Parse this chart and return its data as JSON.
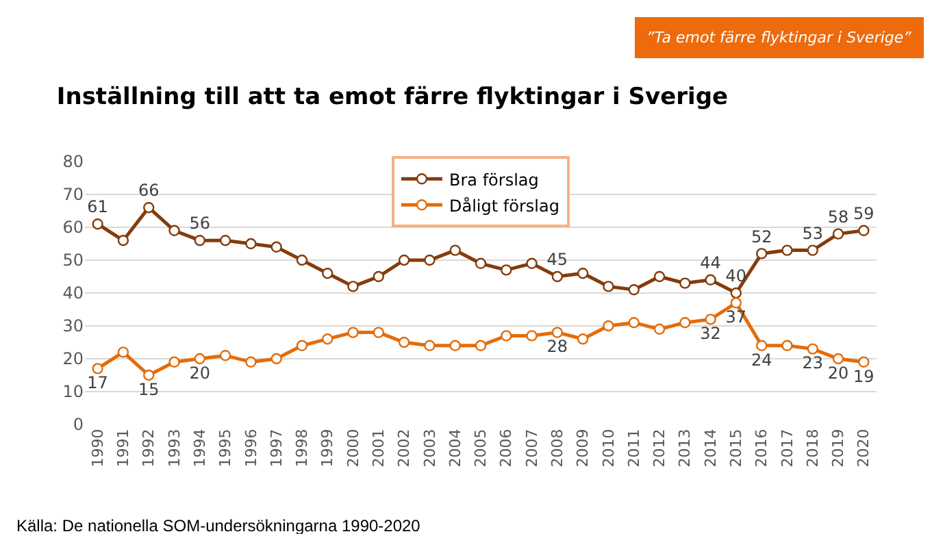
{
  "chart_data": {
    "type": "line",
    "title": "Inställning till att ta emot färre flyktingar i Sverige",
    "categories": [
      "1990",
      "1991",
      "1992",
      "1993",
      "1994",
      "1995",
      "1996",
      "1997",
      "1998",
      "1999",
      "2000",
      "2001",
      "2002",
      "2003",
      "2004",
      "2005",
      "2006",
      "2007",
      "2008",
      "2009",
      "2010",
      "2011",
      "2012",
      "2013",
      "2014",
      "2015",
      "2016",
      "2017",
      "2018",
      "2019",
      "2020"
    ],
    "series": [
      {
        "name": "Bra förslag",
        "color": "#843c0c",
        "values": [
          61,
          56,
          66,
          59,
          56,
          56,
          55,
          54,
          50,
          46,
          42,
          45,
          50,
          50,
          53,
          49,
          47,
          49,
          45,
          46,
          42,
          41,
          45,
          43,
          44,
          40,
          52,
          53,
          53,
          58,
          59
        ],
        "value_labels": [
          "61",
          null,
          "66",
          null,
          "56",
          null,
          null,
          null,
          null,
          null,
          null,
          null,
          null,
          null,
          null,
          null,
          null,
          null,
          "45",
          null,
          null,
          null,
          null,
          null,
          "44",
          "40",
          "52",
          null,
          "53",
          "58",
          "59"
        ]
      },
      {
        "name": "Dåligt förslag",
        "color": "#e46c0a",
        "values": [
          17,
          22,
          15,
          19,
          20,
          21,
          19,
          20,
          24,
          26,
          28,
          28,
          25,
          24,
          24,
          24,
          27,
          27,
          28,
          26,
          30,
          31,
          29,
          31,
          32,
          37,
          24,
          24,
          23,
          20,
          19
        ],
        "value_labels": [
          "17",
          null,
          "15",
          null,
          "20",
          null,
          null,
          null,
          null,
          null,
          null,
          null,
          null,
          null,
          null,
          null,
          null,
          null,
          "28",
          null,
          null,
          null,
          null,
          null,
          "32",
          "37",
          "24",
          null,
          "23",
          "20",
          "19"
        ]
      }
    ],
    "ylim": [
      0,
      80
    ],
    "yticks": [
      0,
      10,
      20,
      30,
      40,
      50,
      60,
      70,
      80
    ],
    "grid": "y",
    "legend": "top",
    "marker": "circle",
    "line_style": "solid",
    "annotations": [
      "”Ta emot färre flyktingar i Sverige”",
      "Källa: De nationella SOM-undersökningarna 1990-2020"
    ]
  }
}
